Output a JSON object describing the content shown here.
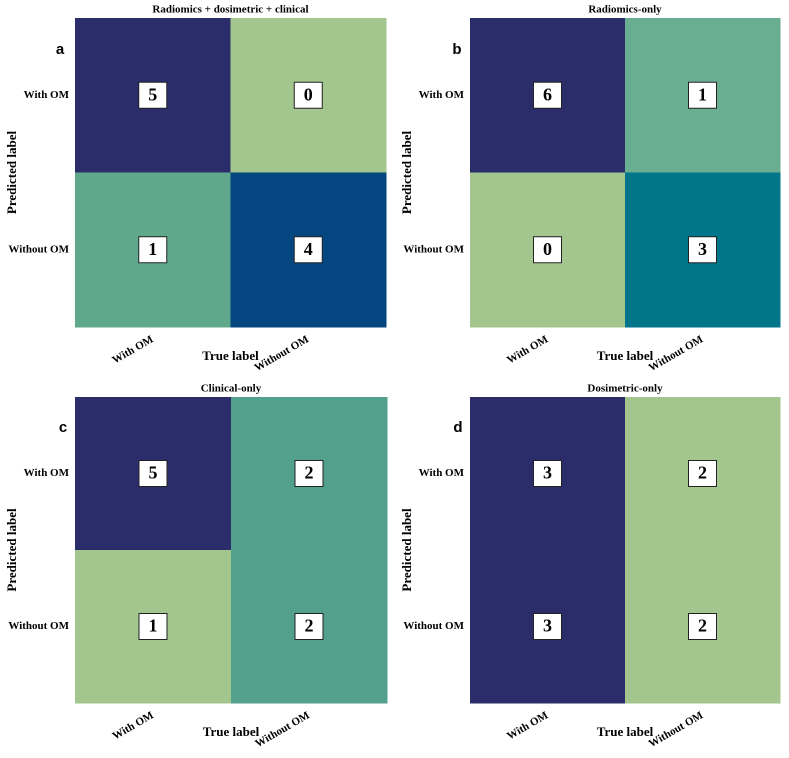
{
  "chart_data": [
    {
      "type": "heatmap",
      "title": "Radiomics + dosimetric + clinical",
      "panel": "a",
      "x_label": "True label",
      "y_label": "Predicted label",
      "x_categories": [
        "With OM",
        "Without OM"
      ],
      "y_categories": [
        "With OM",
        "Without OM"
      ],
      "values": [
        [
          5,
          0
        ],
        [
          1,
          4
        ]
      ],
      "colors": [
        [
          "#2b2d6a",
          "#a3c68f"
        ],
        [
          "#5fa88c",
          "#044680"
        ]
      ]
    },
    {
      "type": "heatmap",
      "title": "Radiomics-only",
      "panel": "b",
      "x_label": "True label",
      "y_label": "Predicted label",
      "x_categories": [
        "With OM",
        "Without OM"
      ],
      "y_categories": [
        "With OM",
        "Without OM"
      ],
      "values": [
        [
          6,
          1
        ],
        [
          0,
          3
        ]
      ],
      "colors": [
        [
          "#2b2d6a",
          "#6aae91"
        ],
        [
          "#a3c68f",
          "#01768b"
        ]
      ]
    },
    {
      "type": "heatmap",
      "title": "Clinical-only",
      "panel": "c",
      "x_label": "True label",
      "y_label": "Predicted label",
      "x_categories": [
        "With OM",
        "Without OM"
      ],
      "y_categories": [
        "With OM",
        "Without OM"
      ],
      "values": [
        [
          5,
          2
        ],
        [
          1,
          2
        ]
      ],
      "colors": [
        [
          "#2b2d6a",
          "#53a08c"
        ],
        [
          "#a3c68f",
          "#53a08c"
        ]
      ]
    },
    {
      "type": "heatmap",
      "title": "Dosimetric-only",
      "panel": "d",
      "x_label": "True label",
      "y_label": "Predicted label",
      "x_categories": [
        "With OM",
        "Without OM"
      ],
      "y_categories": [
        "With OM",
        "Without OM"
      ],
      "values": [
        [
          3,
          2
        ],
        [
          3,
          2
        ]
      ],
      "colors": [
        [
          "#2b2d6a",
          "#a3c68f"
        ],
        [
          "#2b2d6a",
          "#a3c68f"
        ]
      ]
    }
  ]
}
